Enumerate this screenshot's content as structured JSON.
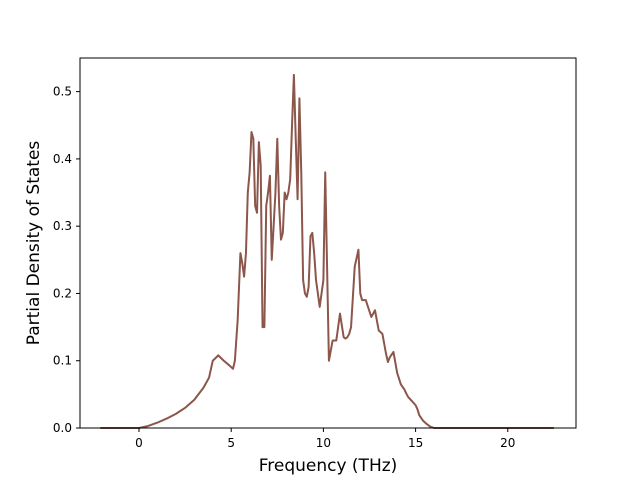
{
  "chart_data": {
    "type": "line",
    "title": "",
    "xlabel": "Frequency (THz)",
    "ylabel": "Partial Density of States",
    "xlim": [
      -3.2,
      23.7
    ],
    "ylim": [
      0.0,
      0.55
    ],
    "xticks": [
      0,
      5,
      10,
      15,
      20
    ],
    "xtick_labels": [
      "0",
      "5",
      "10",
      "15",
      "20"
    ],
    "yticks": [
      0.0,
      0.1,
      0.2,
      0.3,
      0.4,
      0.5
    ],
    "ytick_labels": [
      "0.0",
      "0.1",
      "0.2",
      "0.3",
      "0.4",
      "0.5"
    ],
    "grid": false,
    "legend": "none",
    "series": [
      {
        "color": "#8c564b",
        "x": [
          -2.1,
          0.0,
          0.5,
          1.0,
          1.5,
          2.0,
          2.5,
          3.0,
          3.5,
          3.8,
          4.0,
          4.3,
          4.6,
          4.9,
          5.1,
          5.2,
          5.35,
          5.5,
          5.6,
          5.7,
          5.8,
          5.9,
          6.0,
          6.1,
          6.2,
          6.3,
          6.4,
          6.5,
          6.6,
          6.7,
          6.8,
          6.9,
          7.0,
          7.1,
          7.2,
          7.3,
          7.4,
          7.5,
          7.6,
          7.7,
          7.8,
          7.9,
          8.0,
          8.1,
          8.2,
          8.3,
          8.4,
          8.5,
          8.6,
          8.7,
          8.8,
          8.9,
          9.0,
          9.1,
          9.2,
          9.3,
          9.4,
          9.5,
          9.6,
          9.8,
          10.0,
          10.1,
          10.3,
          10.5,
          10.7,
          10.9,
          11.1,
          11.2,
          11.3,
          11.4,
          11.5,
          11.7,
          11.9,
          12.0,
          12.1,
          12.3,
          12.6,
          12.8,
          13.0,
          13.2,
          13.4,
          13.5,
          13.6,
          13.8,
          14.0,
          14.2,
          14.4,
          14.5,
          14.6,
          14.8,
          15.0,
          15.1,
          15.2,
          15.4,
          15.6,
          15.8,
          16.0,
          16.2,
          16.4,
          16.6,
          17.0,
          17.5,
          18.0,
          18.5,
          19.0,
          19.5,
          20.0,
          20.3,
          20.5,
          21.0,
          22.5
        ],
        "y": [
          0.0,
          0.0,
          0.003,
          0.008,
          0.014,
          0.021,
          0.03,
          0.042,
          0.06,
          0.075,
          0.1,
          0.108,
          0.1,
          0.093,
          0.088,
          0.1,
          0.16,
          0.26,
          0.245,
          0.225,
          0.26,
          0.35,
          0.38,
          0.44,
          0.43,
          0.33,
          0.32,
          0.425,
          0.39,
          0.15,
          0.15,
          0.33,
          0.35,
          0.375,
          0.25,
          0.3,
          0.35,
          0.43,
          0.33,
          0.28,
          0.29,
          0.35,
          0.34,
          0.35,
          0.37,
          0.45,
          0.525,
          0.43,
          0.34,
          0.49,
          0.38,
          0.22,
          0.2,
          0.195,
          0.21,
          0.285,
          0.29,
          0.26,
          0.22,
          0.18,
          0.22,
          0.38,
          0.1,
          0.13,
          0.13,
          0.17,
          0.135,
          0.133,
          0.135,
          0.14,
          0.15,
          0.24,
          0.265,
          0.2,
          0.19,
          0.19,
          0.165,
          0.175,
          0.145,
          0.14,
          0.11,
          0.098,
          0.105,
          0.113,
          0.082,
          0.065,
          0.057,
          0.051,
          0.046,
          0.04,
          0.034,
          0.028,
          0.019,
          0.011,
          0.006,
          0.002,
          0.0,
          0.0,
          0.0,
          0.0,
          0.0,
          0.0,
          0.0,
          0.0,
          0.0,
          0.0,
          0.0,
          0.0,
          0.0,
          0.0,
          0.0
        ]
      }
    ]
  }
}
